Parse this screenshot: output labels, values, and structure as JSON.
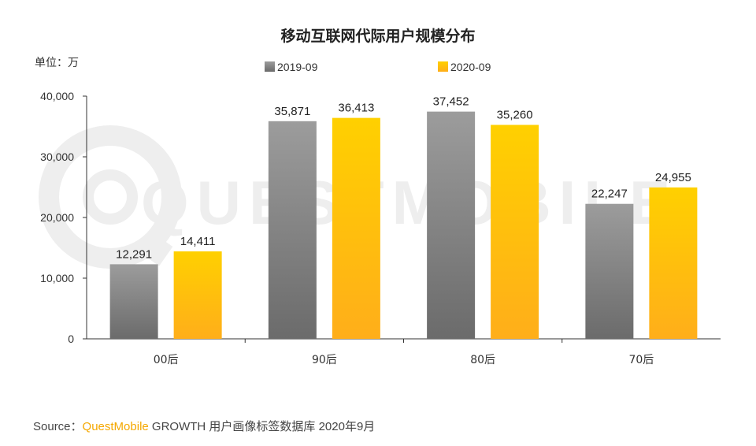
{
  "chart_data": {
    "type": "bar",
    "title": "移动互联网代际用户规模分布",
    "unit_label": "单位：万",
    "categories": [
      "00后",
      "90后",
      "80后",
      "70后"
    ],
    "series": [
      {
        "name": "2019-09",
        "values": [
          12291,
          35871,
          37452,
          22247
        ],
        "color_top": "#9c9c9c",
        "color_bottom": "#6b6b6b"
      },
      {
        "name": "2020-09",
        "values": [
          14411,
          36413,
          35260,
          24955
        ],
        "color_top": "#ffd000",
        "color_bottom": "#ffae1a"
      }
    ],
    "value_labels": [
      [
        "12,291",
        "35,871",
        "37,452",
        "22,247"
      ],
      [
        "14,411",
        "36,413",
        "35,260",
        "24,955"
      ]
    ],
    "y_ticks": [
      0,
      10000,
      20000,
      30000,
      40000
    ],
    "y_tick_labels": [
      "0",
      "10,000",
      "20,000",
      "30,000",
      "40,000"
    ],
    "ylim": [
      0,
      40000
    ],
    "legend_position": "top-center",
    "grid": false,
    "watermark": "QUESTMOBILE"
  },
  "source": {
    "prefix": "Source：",
    "brand": "QuestMobile",
    "rest": " GROWTH 用户画像标签数据库 2020年9月"
  }
}
